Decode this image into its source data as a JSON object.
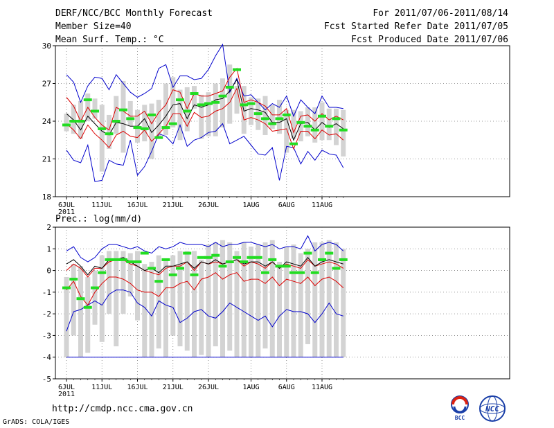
{
  "header": {
    "title": "DERF/NCC/BCC Monthly Forecast",
    "member_size": "Member Size=40",
    "variable": "Mean Surf. Temp.: °C",
    "period": "For 2011/07/06-2011/08/14",
    "fcst_started": "Fcst Started Refer Date 2011/07/05",
    "fcst_produced": "Fcst Produced Date 2011/07/06"
  },
  "panel2_label": "Prec.: log(mm/d)",
  "footer": {
    "url": "http://cmdp.ncc.cma.gov.cn",
    "credit": "GrADS: COLA/IGES",
    "logos": [
      "BCC",
      "NCC"
    ]
  },
  "colors": {
    "box": "#d3d3d3",
    "median": "#22dd22",
    "mean": "#000000",
    "inner": "#dd0000",
    "outer": "#0000cc",
    "grid": "#777777"
  },
  "chart_data": [
    {
      "type": "line",
      "title": "Mean Surf. Temp.: °C",
      "x_ticks": [
        "6JUL",
        "11JUL",
        "16JUL",
        "21JUL",
        "26JUL",
        "1AUG",
        "6AUG",
        "11AUG"
      ],
      "x_tick_days": [
        0,
        5,
        10,
        15,
        20,
        26,
        31,
        36
      ],
      "x_sublabel": "2011",
      "ylim": [
        18,
        30
      ],
      "yticks": [
        18,
        21,
        24,
        27,
        30
      ],
      "days": 40,
      "box_low": [
        23.2,
        23.0,
        22.6,
        24.0,
        24.2,
        20.0,
        21.8,
        23.0,
        21.5,
        23.6,
        22.3,
        22.4,
        21.0,
        22.6,
        22.9,
        23.5,
        22.5,
        23.2,
        25.0,
        22.6,
        22.8,
        22.8,
        23.5,
        23.8,
        24.6,
        23.0,
        23.7,
        23.3,
        22.9,
        23.4,
        23.0,
        21.5,
        22.6,
        22.4,
        22.8,
        22.3,
        22.5,
        22.5,
        22.1,
        21.2
      ],
      "box_high": [
        24.6,
        25.3,
        25.6,
        26.2,
        25.8,
        25.3,
        24.5,
        26.0,
        27.2,
        25.6,
        24.9,
        25.3,
        25.4,
        25.7,
        27.0,
        27.5,
        26.5,
        26.7,
        26.8,
        26.1,
        26.3,
        27.0,
        27.4,
        28.5,
        26.8,
        26.8,
        25.9,
        25.8,
        26.0,
        25.3,
        25.7,
        24.9,
        24.9,
        24.8,
        25.1,
        25.1,
        25.5,
        25.0,
        25.0,
        24.9
      ],
      "median": [
        23.7,
        24.0,
        24.0,
        25.7,
        24.8,
        23.4,
        23.0,
        24.0,
        24.9,
        24.2,
        23.5,
        23.4,
        24.5,
        22.7,
        23.5,
        23.8,
        25.7,
        24.8,
        26.2,
        25.3,
        25.4,
        25.5,
        26.0,
        26.7,
        28.1,
        25.3,
        25.4,
        24.6,
        24.2,
        23.8,
        24.2,
        24.5,
        22.2,
        23.9,
        23.6,
        23.3,
        24.4,
        23.6,
        24.2,
        23.3
      ],
      "mean": [
        24.6,
        24.1,
        23.3,
        24.4,
        23.8,
        23.2,
        22.9,
        23.9,
        23.8,
        23.6,
        23.6,
        24.2,
        23.1,
        23.7,
        24.4,
        25.3,
        25.4,
        24.2,
        25.3,
        25.1,
        25.3,
        25.7,
        25.8,
        26.4,
        27.3,
        24.8,
        25.0,
        24.9,
        24.7,
        23.9,
        23.9,
        24.2,
        22.5,
        23.8,
        23.9,
        23.3,
        23.9,
        23.5,
        23.8,
        23.4
      ],
      "inner_high": [
        25.9,
        25.2,
        24.0,
        25.1,
        24.3,
        23.7,
        23.3,
        25.1,
        24.8,
        24.4,
        24.4,
        24.8,
        23.8,
        24.7,
        25.3,
        26.5,
        26.3,
        25.0,
        26.2,
        26.0,
        26.0,
        26.2,
        26.4,
        27.5,
        28.2,
        25.5,
        25.7,
        25.5,
        25.2,
        24.5,
        24.5,
        25.0,
        23.1,
        24.4,
        24.5,
        24.0,
        24.6,
        24.1,
        24.4,
        24.1
      ],
      "inner_low": [
        23.8,
        23.3,
        22.6,
        23.7,
        23.0,
        22.5,
        21.9,
        22.9,
        23.2,
        22.8,
        22.7,
        23.3,
        22.4,
        23.0,
        23.6,
        24.6,
        24.6,
        23.6,
        24.7,
        24.3,
        24.4,
        24.8,
        25.0,
        25.5,
        26.6,
        24.1,
        24.3,
        24.1,
        23.8,
        23.2,
        23.3,
        23.4,
        21.8,
        23.2,
        23.2,
        22.6,
        23.3,
        22.9,
        23.0,
        22.5
      ],
      "outer_high": [
        27.7,
        27.1,
        25.5,
        26.8,
        27.5,
        27.4,
        26.5,
        27.7,
        27.0,
        26.3,
        25.9,
        26.2,
        26.6,
        28.2,
        28.5,
        26.7,
        27.6,
        27.6,
        27.3,
        27.4,
        28.1,
        29.2,
        30.1,
        26.3,
        27.4,
        26.0,
        26.1,
        25.5,
        24.9,
        25.4,
        25.1,
        26.0,
        24.4,
        25.7,
        25.1,
        24.6,
        26.0,
        25.1,
        25.1,
        25.0
      ],
      "outer_low": [
        21.7,
        20.9,
        20.7,
        22.1,
        19.2,
        19.3,
        20.9,
        20.6,
        20.5,
        22.5,
        19.7,
        20.4,
        21.6,
        23.0,
        22.8,
        22.2,
        23.7,
        22.0,
        22.5,
        22.7,
        23.1,
        23.2,
        23.8,
        22.2,
        22.5,
        22.8,
        22.1,
        21.4,
        21.3,
        21.9,
        19.3,
        22.0,
        21.9,
        20.6,
        21.6,
        20.9,
        21.7,
        21.4,
        21.3,
        20.3
      ]
    },
    {
      "type": "line",
      "title": "Prec.: log(mm/d)",
      "x_ticks": [
        "6JUL",
        "11JUL",
        "16JUL",
        "21JUL",
        "26JUL",
        "1AUG",
        "6AUG",
        "11AUG"
      ],
      "x_tick_days": [
        0,
        5,
        10,
        15,
        20,
        26,
        31,
        36
      ],
      "x_sublabel": "2011",
      "ylim": [
        -5,
        2
      ],
      "yticks": [
        -5,
        -4,
        -3,
        -2,
        -1,
        0,
        1,
        2
      ],
      "days": 40,
      "floor": -4,
      "box_low": [
        -4.0,
        -3.0,
        -4.0,
        -3.8,
        -2.5,
        -3.3,
        -2.0,
        -3.5,
        -2.0,
        -1.2,
        -2.3,
        -4.0,
        -4.0,
        -3.6,
        -4.0,
        -3.0,
        -3.5,
        -3.7,
        -4.0,
        -3.9,
        -4.0,
        -3.5,
        -4.0,
        -3.7,
        -4.0,
        -4.0,
        -4.0,
        -4.0,
        -3.6,
        -4.0,
        -4.0,
        -4.0,
        -4.0,
        -4.0,
        -3.4,
        -4.0,
        -4.0,
        -4.0,
        -4.0,
        -4.0
      ],
      "box_high": [
        -0.3,
        0.3,
        0.2,
        -0.3,
        0.0,
        0.7,
        0.9,
        0.9,
        0.9,
        0.8,
        0.9,
        0.3,
        0.4,
        0.7,
        0.5,
        0.7,
        0.9,
        0.9,
        0.9,
        0.5,
        1.2,
        1.3,
        1.4,
        1.3,
        0.9,
        1.3,
        1.1,
        1.2,
        1.3,
        1.4,
        0.4,
        1.1,
        1.2,
        0.8,
        1.0,
        1.3,
        1.3,
        1.4,
        1.3,
        1.0
      ],
      "median": [
        -0.8,
        -0.4,
        -1.3,
        -1.7,
        -0.8,
        -0.1,
        0.5,
        0.5,
        0.5,
        0.4,
        0.4,
        0.8,
        0.1,
        -0.5,
        0.5,
        -0.2,
        0.1,
        0.8,
        -0.2,
        0.6,
        0.6,
        0.7,
        0.2,
        0.4,
        0.6,
        0.4,
        0.6,
        0.6,
        -0.1,
        0.5,
        0.2,
        0.2,
        -0.1,
        -0.1,
        0.8,
        -0.1,
        0.5,
        0.8,
        0.1,
        0.5
      ],
      "mean": [
        0.3,
        0.5,
        0.2,
        -0.2,
        0.2,
        0.1,
        0.5,
        0.5,
        0.6,
        0.4,
        0.2,
        0.0,
        0.1,
        -0.1,
        0.2,
        0.2,
        0.3,
        0.4,
        0.1,
        0.4,
        0.3,
        0.5,
        0.3,
        0.4,
        0.5,
        0.3,
        0.4,
        0.4,
        0.2,
        0.4,
        0.1,
        0.4,
        0.3,
        0.2,
        0.6,
        0.2,
        0.4,
        0.5,
        0.4,
        0.3
      ],
      "inner_high": [
        0.0,
        0.3,
        0.1,
        -0.3,
        0.1,
        0.1,
        0.4,
        0.5,
        0.5,
        0.3,
        0.2,
        0.0,
        -0.1,
        -0.2,
        0.1,
        0.2,
        0.2,
        0.4,
        0.0,
        0.4,
        0.3,
        0.4,
        0.3,
        0.4,
        0.5,
        0.2,
        0.4,
        0.3,
        0.1,
        0.4,
        0.1,
        0.3,
        0.2,
        0.1,
        0.5,
        0.2,
        0.3,
        0.4,
        0.3,
        0.1
      ],
      "inner_low": [
        -0.9,
        -0.5,
        -1.2,
        -1.6,
        -1.0,
        -0.6,
        -0.3,
        -0.3,
        -0.4,
        -0.6,
        -0.9,
        -1.0,
        -1.0,
        -1.2,
        -0.8,
        -0.8,
        -0.6,
        -0.5,
        -0.9,
        -0.4,
        -0.3,
        -0.1,
        -0.4,
        -0.2,
        -0.1,
        -0.5,
        -0.4,
        -0.4,
        -0.6,
        -0.3,
        -0.7,
        -0.4,
        -0.5,
        -0.6,
        -0.3,
        -0.7,
        -0.4,
        -0.3,
        -0.5,
        -0.8
      ],
      "outer_high": [
        0.9,
        1.1,
        0.6,
        0.4,
        0.6,
        1.0,
        1.2,
        1.2,
        1.1,
        1.0,
        1.1,
        0.9,
        0.8,
        1.1,
        1.0,
        1.1,
        1.3,
        1.2,
        1.2,
        1.2,
        1.1,
        1.3,
        1.1,
        1.2,
        1.2,
        1.3,
        1.3,
        1.2,
        1.1,
        1.2,
        1.0,
        1.1,
        1.1,
        1.0,
        1.6,
        0.9,
        1.2,
        1.3,
        1.2,
        0.9
      ],
      "outer_low": [
        -2.8,
        -1.9,
        -1.8,
        -1.6,
        -1.4,
        -1.6,
        -1.1,
        -0.9,
        -0.9,
        -1.0,
        -1.5,
        -1.7,
        -2.1,
        -1.4,
        -1.6,
        -1.7,
        -2.4,
        -2.2,
        -1.9,
        -1.8,
        -2.1,
        -2.2,
        -1.9,
        -1.5,
        -1.7,
        -1.9,
        -2.1,
        -2.3,
        -2.1,
        -2.6,
        -2.1,
        -1.8,
        -1.9,
        -1.9,
        -2.0,
        -2.4,
        -2.0,
        -1.5,
        -2.0,
        -2.1
      ]
    }
  ]
}
